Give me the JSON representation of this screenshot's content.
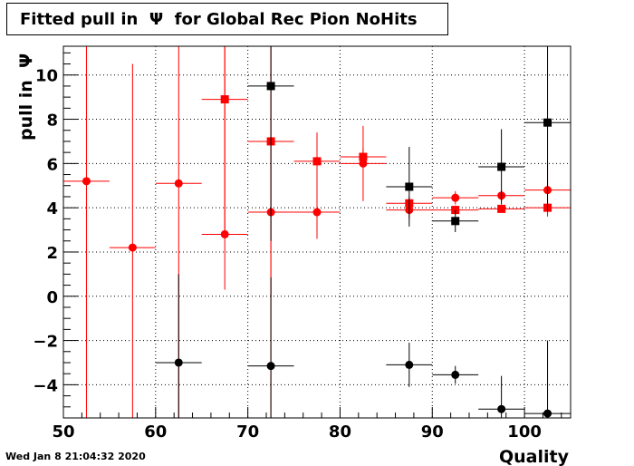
{
  "chart_data": {
    "type": "scatter",
    "title": "Fitted pull in  Ψ  for Global Rec Pion NoHits",
    "xlabel": "Quality",
    "ylabel": "pull in  Ψ",
    "xlim": [
      50,
      105
    ],
    "ylim": [
      -5.5,
      11.3
    ],
    "grid": true,
    "xticks": [
      50,
      60,
      70,
      80,
      90,
      100
    ],
    "yticks": [
      -4,
      -2,
      0,
      2,
      4,
      6,
      8,
      10
    ],
    "series": [
      {
        "color": "#ff0000",
        "marker": "circle",
        "points": [
          {
            "x": 52.5,
            "y": 5.2,
            "xerr": 2.5,
            "yerr_low": 11.0,
            "yerr_high": 11.0
          },
          {
            "x": 57.5,
            "y": 2.2,
            "xerr": 2.5,
            "yerr_low": 8.0,
            "yerr_high": 8.3
          },
          {
            "x": 62.5,
            "y": 5.1,
            "xerr": 2.5,
            "yerr_low": 11.0,
            "yerr_high": 11.0
          },
          {
            "x": 67.5,
            "y": 2.8,
            "xerr": 2.5,
            "yerr_low": 2.5,
            "yerr_high": 9.0
          },
          {
            "x": 72.5,
            "y": 3.8,
            "xerr": 2.5,
            "yerr_low": 10.0,
            "yerr_high": 9.0
          },
          {
            "x": 77.5,
            "y": 3.8,
            "xerr": 2.5,
            "yerr_low": 1.2,
            "yerr_high": 2.3
          },
          {
            "x": 82.5,
            "y": 6.0,
            "xerr": 2.5,
            "yerr_low": 1.7,
            "yerr_high": 1.7
          },
          {
            "x": 87.5,
            "y": 3.9,
            "xerr": 2.5,
            "yerr_low": 0.4,
            "yerr_high": 0.4
          },
          {
            "x": 92.5,
            "y": 4.45,
            "xerr": 2.5,
            "yerr_low": 0.3,
            "yerr_high": 0.3
          },
          {
            "x": 97.5,
            "y": 4.55,
            "xerr": 2.5,
            "yerr_low": 0.25,
            "yerr_high": 0.25
          },
          {
            "x": 102.5,
            "y": 4.8,
            "xerr": 2.5,
            "yerr_low": 1.2,
            "yerr_high": 1.2
          }
        ]
      },
      {
        "color": "#ff0000",
        "marker": "square",
        "points": [
          {
            "x": 67.5,
            "y": 8.9,
            "xerr": 2.5,
            "yerr_low": 6.0,
            "yerr_high": 6.0
          },
          {
            "x": 72.5,
            "y": 7.0,
            "xerr": 2.5,
            "yerr_low": 7.0,
            "yerr_high": 7.0
          },
          {
            "x": 77.5,
            "y": 6.1,
            "xerr": 2.5,
            "yerr_low": 1.3,
            "yerr_high": 1.3
          },
          {
            "x": 82.5,
            "y": 6.3,
            "xerr": 2.5,
            "yerr_low": 0.4,
            "yerr_high": 0.4
          },
          {
            "x": 87.5,
            "y": 4.2,
            "xerr": 2.5,
            "yerr_low": 0.3,
            "yerr_high": 0.3
          },
          {
            "x": 92.5,
            "y": 3.9,
            "xerr": 2.5,
            "yerr_low": 0.2,
            "yerr_high": 0.2
          },
          {
            "x": 97.5,
            "y": 3.95,
            "xerr": 2.5,
            "yerr_low": 0.15,
            "yerr_high": 0.15
          },
          {
            "x": 102.5,
            "y": 4.0,
            "xerr": 2.5,
            "yerr_low": 0.2,
            "yerr_high": 0.2
          }
        ]
      },
      {
        "color": "#000000",
        "marker": "square",
        "points": [
          {
            "x": 72.5,
            "y": 9.5,
            "xerr": 2.5,
            "yerr_low": 7.0,
            "yerr_high": 3.0
          },
          {
            "x": 87.5,
            "y": 4.95,
            "xerr": 2.5,
            "yerr_low": 1.8,
            "yerr_high": 1.8
          },
          {
            "x": 92.5,
            "y": 3.4,
            "xerr": 2.5,
            "yerr_low": 0.5,
            "yerr_high": 0.5
          },
          {
            "x": 97.5,
            "y": 5.85,
            "xerr": 2.5,
            "yerr_low": 1.7,
            "yerr_high": 1.7
          },
          {
            "x": 102.5,
            "y": 7.85,
            "xerr": 2.5,
            "yerr_low": 4.0,
            "yerr_high": 4.0
          }
        ]
      },
      {
        "color": "#000000",
        "marker": "circle",
        "points": [
          {
            "x": 62.5,
            "y": -3.0,
            "xerr": 2.5,
            "yerr_low": 4.0,
            "yerr_high": 4.0
          },
          {
            "x": 72.5,
            "y": -3.15,
            "xerr": 2.5,
            "yerr_low": 4.0,
            "yerr_high": 4.0
          },
          {
            "x": 87.5,
            "y": -3.1,
            "xerr": 2.5,
            "yerr_low": 1.0,
            "yerr_high": 1.0
          },
          {
            "x": 92.5,
            "y": -3.55,
            "xerr": 2.5,
            "yerr_low": 0.4,
            "yerr_high": 0.4
          },
          {
            "x": 97.5,
            "y": -5.1,
            "xerr": 2.5,
            "yerr_low": 1.5,
            "yerr_high": 1.5
          },
          {
            "x": 102.5,
            "y": -5.3,
            "xerr": 2.5,
            "yerr_low": 3.3,
            "yerr_high": 3.3
          }
        ]
      }
    ]
  },
  "timestamp": "Wed Jan  8 21:04:32 2020"
}
